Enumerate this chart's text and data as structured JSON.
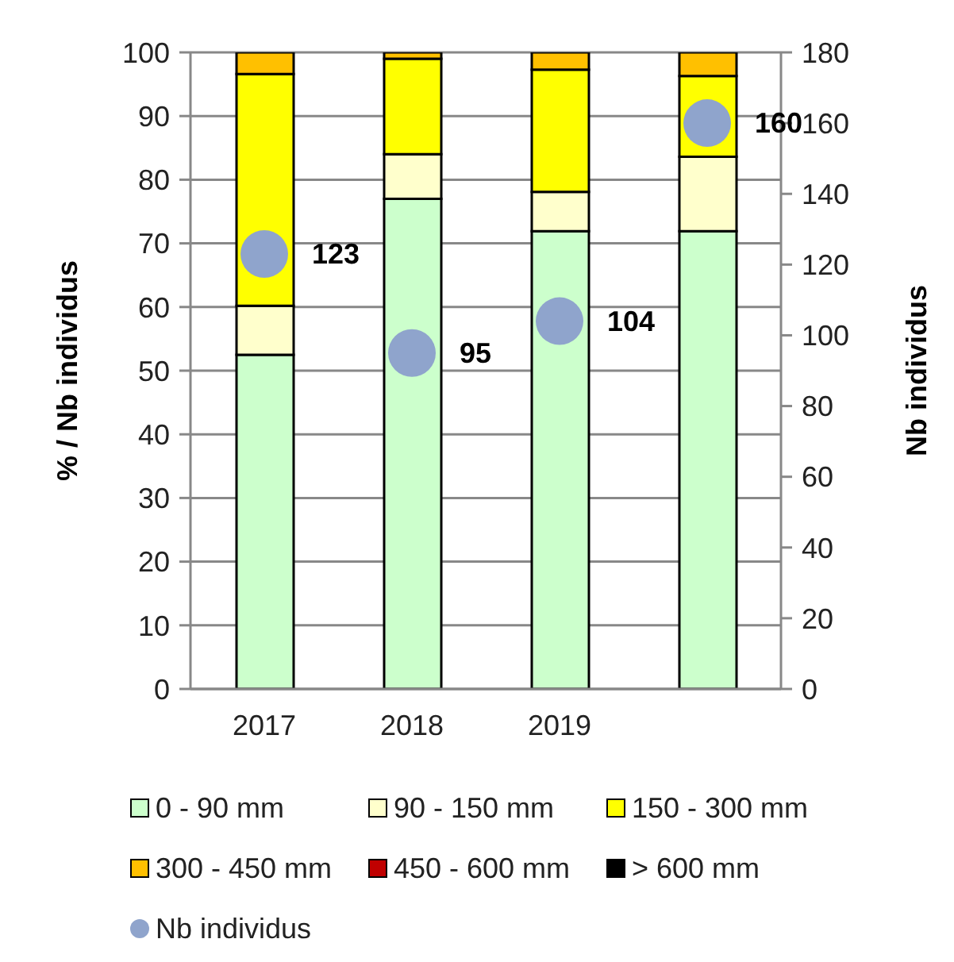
{
  "chart_data": {
    "type": "bar",
    "stacked": true,
    "categories": [
      "2017",
      "2018",
      "2019",
      null
    ],
    "ylabel": "% / Nb individus",
    "y2label": "Nb individus",
    "ylim": [
      0,
      100
    ],
    "yticks": [
      0,
      10,
      20,
      30,
      40,
      50,
      60,
      70,
      80,
      90,
      100
    ],
    "y2lim": [
      0,
      180
    ],
    "y2ticks": [
      0,
      20,
      40,
      60,
      80,
      100,
      120,
      140,
      160,
      180
    ],
    "grid": "y",
    "legend": "bottom",
    "series": [
      {
        "name": "0 - 90 mm",
        "color": "#ccffcc",
        "values": [
          52.5,
          77.0,
          71.9,
          71.9
        ]
      },
      {
        "name": "90 - 150 mm",
        "color": "#ffffcc",
        "values": [
          7.7,
          7.0,
          6.2,
          11.7
        ]
      },
      {
        "name": "150 - 300 mm",
        "color": "#ffff00",
        "values": [
          36.4,
          15.0,
          19.2,
          12.7
        ]
      },
      {
        "name": "300 - 450 mm",
        "color": "#ffc000",
        "values": [
          3.4,
          1.0,
          2.7,
          3.7
        ]
      },
      {
        "name": "450 - 600 mm",
        "color": "#c00000",
        "values": [
          0,
          0,
          0,
          0
        ]
      },
      {
        "name": "> 600 mm",
        "color": "#000000",
        "values": [
          0,
          0,
          0,
          0
        ]
      },
      {
        "name": "Nb individus",
        "type": "scatter",
        "axis": "y2",
        "color": "#8fa4cc",
        "marker": "circle",
        "values": [
          123,
          95,
          104,
          160
        ],
        "value_labels": [
          "123",
          "95",
          "104",
          "160"
        ]
      }
    ]
  }
}
